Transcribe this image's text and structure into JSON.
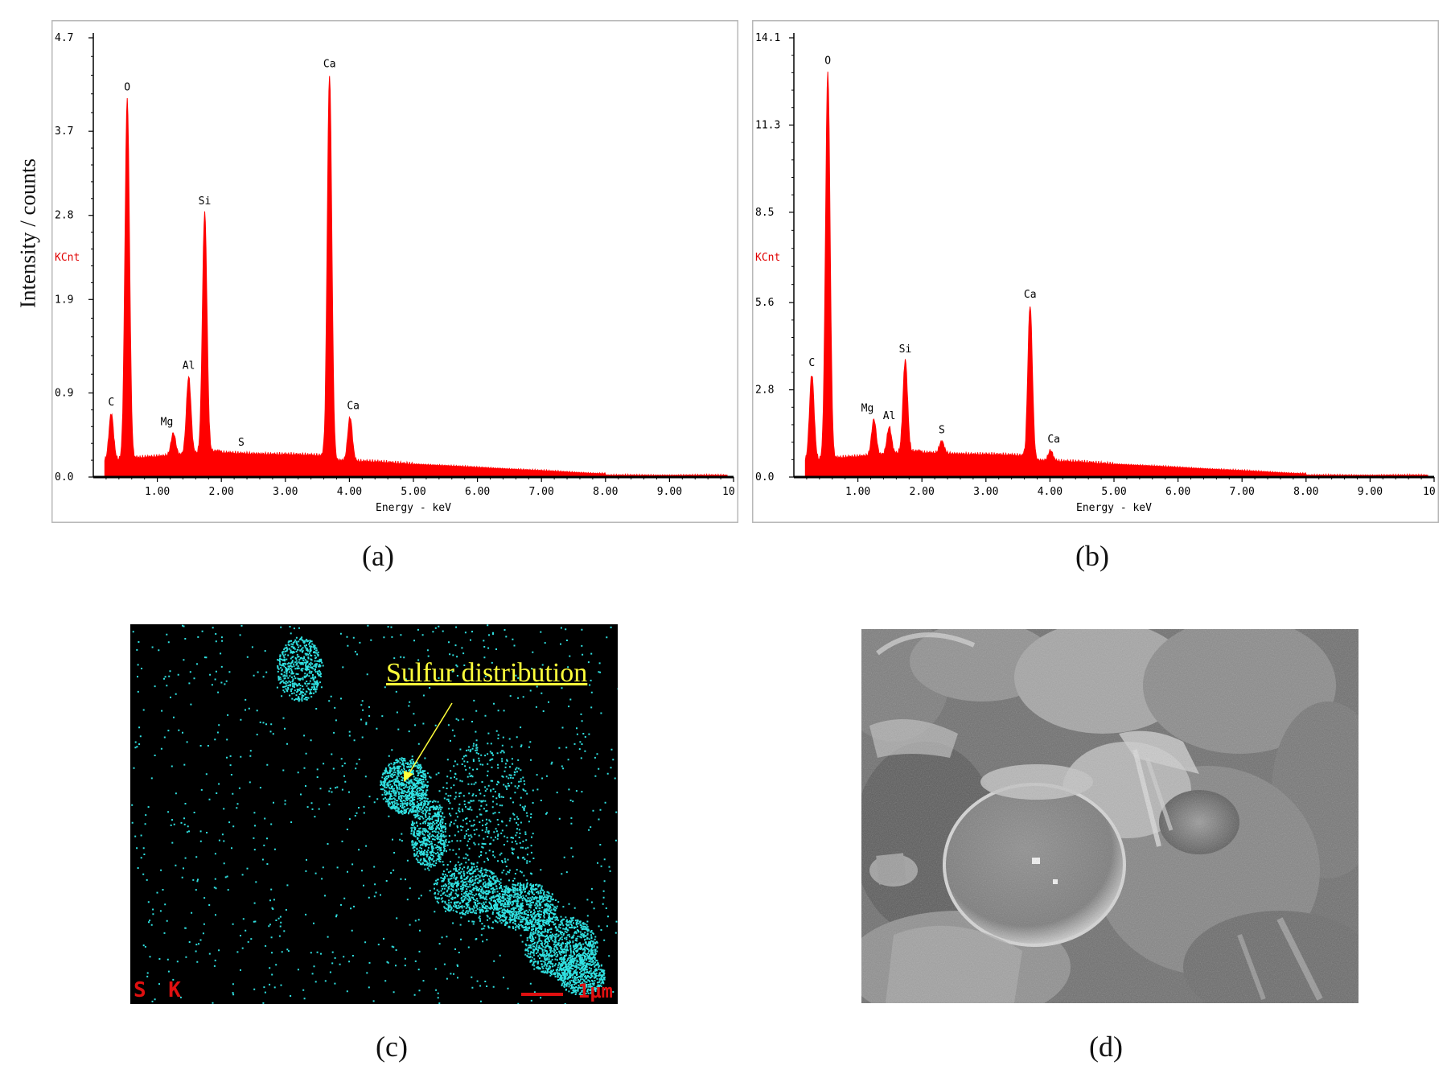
{
  "y_axis_label": "Intensity / counts",
  "captions": {
    "a": "(a)",
    "b": "(b)",
    "c": "(c)",
    "d": "(d)"
  },
  "map_c": {
    "annotation": "Sulfur distribution",
    "element_label": "S K",
    "scale_label": "1μm",
    "colors": {
      "background": "#000000",
      "dots": "#2fe0e0",
      "annotation": "#ffff3a",
      "label": "#e01010"
    }
  },
  "chart_data": [
    {
      "id": "a",
      "type": "area",
      "xlabel": "Energy - keV",
      "unit_label": "KCnt",
      "color": "#ff0000",
      "xlim": [
        0,
        10
      ],
      "ylim": [
        0,
        4.7
      ],
      "x_ticks": [
        1,
        2,
        3,
        4,
        5,
        6,
        7,
        8,
        9,
        10
      ],
      "x_tick_labels": [
        "1.00",
        "2.00",
        "3.00",
        "4.00",
        "5.00",
        "6.00",
        "7.00",
        "8.00",
        "9.00",
        "10"
      ],
      "y_ticks": [
        0,
        0.9,
        1.9,
        2.8,
        3.7,
        4.7
      ],
      "y_tick_labels": [
        "0.0",
        "0.9",
        "1.9",
        "2.8",
        "3.7",
        "4.7"
      ],
      "peaks": [
        {
          "label": "C",
          "energy": 0.28,
          "intensity": 0.68
        },
        {
          "label": "O",
          "energy": 0.53,
          "intensity": 4.05
        },
        {
          "label": "Mg",
          "energy": 1.25,
          "intensity": 0.47
        },
        {
          "label": "Al",
          "energy": 1.49,
          "intensity": 1.07
        },
        {
          "label": "Si",
          "energy": 1.74,
          "intensity": 2.83
        },
        {
          "label": "S",
          "energy": 2.31,
          "intensity": 0.25
        },
        {
          "label": "Ca",
          "energy": 3.69,
          "intensity": 4.3
        },
        {
          "label": "Ca",
          "energy": 4.01,
          "intensity": 0.64
        }
      ]
    },
    {
      "id": "b",
      "type": "area",
      "xlabel": "Energy - keV",
      "unit_label": "KCnt",
      "color": "#ff0000",
      "xlim": [
        0,
        10
      ],
      "ylim": [
        0,
        14.1
      ],
      "x_ticks": [
        1,
        2,
        3,
        4,
        5,
        6,
        7,
        8,
        9,
        10
      ],
      "x_tick_labels": [
        "1.00",
        "2.00",
        "3.00",
        "4.00",
        "5.00",
        "6.00",
        "7.00",
        "8.00",
        "9.00",
        "10"
      ],
      "y_ticks": [
        0,
        2.8,
        5.6,
        8.5,
        11.3,
        14.1
      ],
      "y_tick_labels": [
        "0.0",
        "2.8",
        "5.6",
        "8.5",
        "11.3",
        "14.1"
      ],
      "peaks": [
        {
          "label": "C",
          "energy": 0.28,
          "intensity": 3.3
        },
        {
          "label": "O",
          "energy": 0.53,
          "intensity": 13.0
        },
        {
          "label": "Mg",
          "energy": 1.25,
          "intensity": 1.85
        },
        {
          "label": "Al",
          "energy": 1.49,
          "intensity": 1.6
        },
        {
          "label": "Si",
          "energy": 1.74,
          "intensity": 3.75
        },
        {
          "label": "S",
          "energy": 2.31,
          "intensity": 1.15
        },
        {
          "label": "Ca",
          "energy": 3.69,
          "intensity": 5.5
        },
        {
          "label": "Ca",
          "energy": 4.01,
          "intensity": 0.85
        }
      ]
    }
  ]
}
